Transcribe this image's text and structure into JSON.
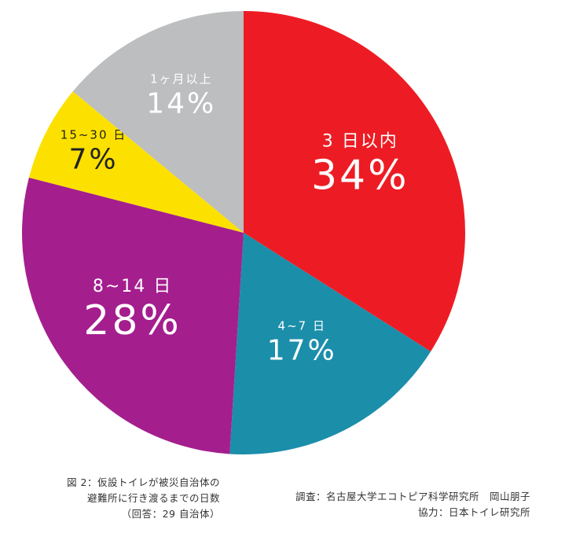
{
  "chart_data": {
    "type": "pie",
    "title": "",
    "slices": [
      {
        "label": "3 日以内",
        "value": 34,
        "display": "34%",
        "color": "#ED1C24",
        "text_color": "#ffffff"
      },
      {
        "label": "4~7 日",
        "value": 17,
        "display": "17%",
        "color": "#1B8EAA",
        "text_color": "#ffffff"
      },
      {
        "label": "8~14 日",
        "value": 28,
        "display": "28%",
        "color": "#A41E8E",
        "text_color": "#ffffff"
      },
      {
        "label": "15~30 日",
        "value": 7,
        "display": "7%",
        "color": "#FCE100",
        "text_color": "#222222"
      },
      {
        "label": "1ヶ月以上",
        "value": 14,
        "display": "14%",
        "color": "#BCBEC0",
        "text_color": "#ffffff"
      }
    ],
    "start_angle_deg": 0,
    "direction": "clockwise",
    "legend": "none"
  },
  "caption": {
    "line1": "図 2：仮設トイレが被災自治体の",
    "line2": "避難所に行き渡るまでの日数",
    "line3": "（回答：29 自治体）"
  },
  "credits": {
    "survey": "調査：名古屋大学エコトピア科学研究所　岡山朋子",
    "cooperation": "協力：日本トイレ研究所"
  }
}
